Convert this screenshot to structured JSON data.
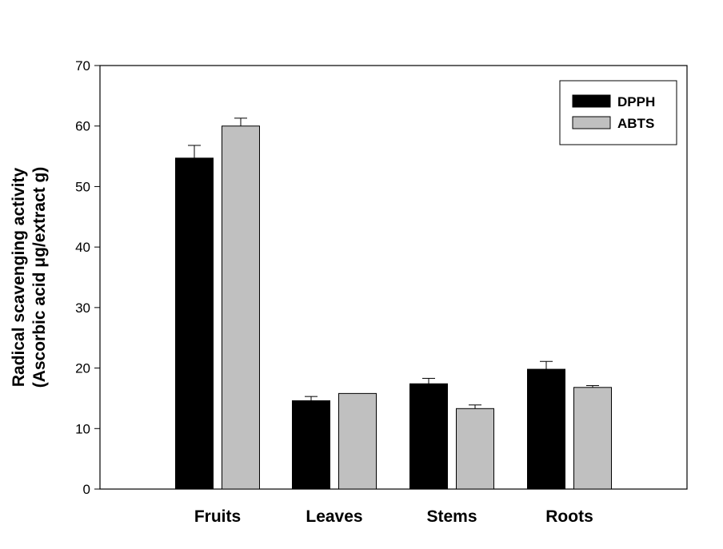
{
  "chart_data": {
    "type": "bar",
    "categories": [
      "Fruits",
      "Leaves",
      "Stems",
      "Roots"
    ],
    "series": [
      {
        "name": "DPPH",
        "color": "#000000",
        "values": [
          54.7,
          14.6,
          17.4,
          19.8
        ],
        "errors": [
          2.1,
          0.7,
          0.9,
          1.3
        ]
      },
      {
        "name": "ABTS",
        "color": "#c0c0c0",
        "values": [
          60.0,
          15.8,
          13.3,
          16.8
        ],
        "errors": [
          1.3,
          0.0,
          0.6,
          0.3
        ]
      }
    ],
    "ylabel_line1": "Radical scavenging activity",
    "ylabel_line2": "(Ascorbic acid μg/extract g)",
    "xlabel": "",
    "ylim": [
      0,
      70
    ],
    "yticks": [
      0,
      10,
      20,
      30,
      40,
      50,
      60,
      70
    ],
    "legend_position": "top-right",
    "grid": false
  }
}
